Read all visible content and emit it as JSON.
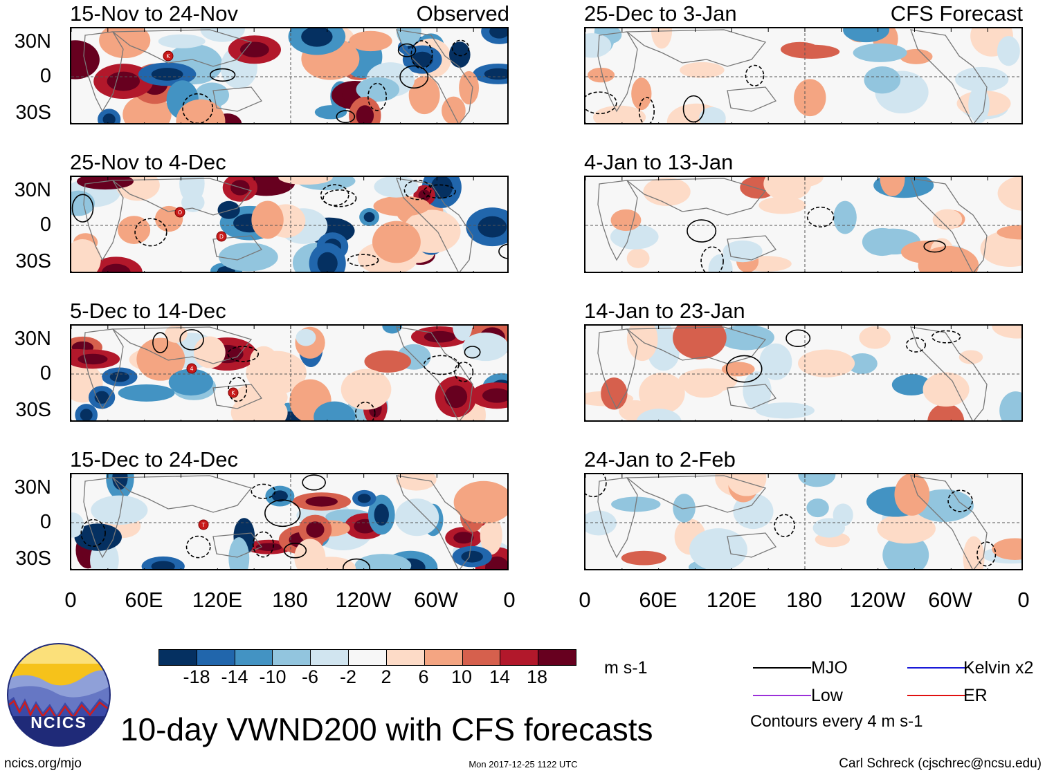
{
  "panels_left": [
    {
      "title": "15-Nov to 24-Nov",
      "tag": "Observed"
    },
    {
      "title": "25-Nov to 4-Dec",
      "tag": ""
    },
    {
      "title": "5-Dec to 14-Dec",
      "tag": ""
    },
    {
      "title": "15-Dec to 24-Dec",
      "tag": ""
    }
  ],
  "panels_right": [
    {
      "title": "25-Dec to 3-Jan",
      "tag": "CFS Forecast"
    },
    {
      "title": "4-Jan to 13-Jan",
      "tag": ""
    },
    {
      "title": "14-Jan to 23-Jan",
      "tag": ""
    },
    {
      "title": "24-Jan to 2-Feb",
      "tag": ""
    }
  ],
  "lat_labels": [
    "30N",
    "0",
    "30S"
  ],
  "lon_labels": [
    "0",
    "60E",
    "120E",
    "180",
    "120W",
    "60W",
    "0"
  ],
  "colorbar": {
    "labels": [
      "-18",
      "-14",
      "-10",
      "-6",
      "-2",
      "2",
      "6",
      "10",
      "14",
      "18"
    ],
    "colors": [
      "#053061",
      "#2166ac",
      "#4393c3",
      "#92c5de",
      "#d1e5f0",
      "#f7f7f7",
      "#fddbc7",
      "#f4a582",
      "#d6604d",
      "#b2182b",
      "#67001f"
    ],
    "units": "m s-1"
  },
  "legend": {
    "mjo": {
      "label": "MJO",
      "color": "#000000"
    },
    "kelvin": {
      "label": "Kelvin x2",
      "color": "#1a1ad8"
    },
    "low": {
      "label": "Low",
      "color": "#9b30d9"
    },
    "er": {
      "label": "ER",
      "color": "#e01010"
    },
    "contour_note": "Contours every 4 m s-1"
  },
  "logo": {
    "text": "NCICS"
  },
  "title": "10-day VWND200 with CFS forecasts",
  "footer": {
    "url": "ncics.org/mjo",
    "timestamp": "Mon 2017-12-25 1122 UTC",
    "credit": "Carl Schreck (cjschrec@ncsu.edu)"
  },
  "storm_markers": [
    {
      "panel": "left-1",
      "letter": "K"
    },
    {
      "panel": "left-2",
      "letter": "O"
    },
    {
      "panel": "left-2",
      "letter": "D"
    },
    {
      "panel": "left-3",
      "letter": "4"
    },
    {
      "panel": "left-3",
      "letter": "K"
    },
    {
      "panel": "left-4",
      "letter": "T"
    }
  ]
}
